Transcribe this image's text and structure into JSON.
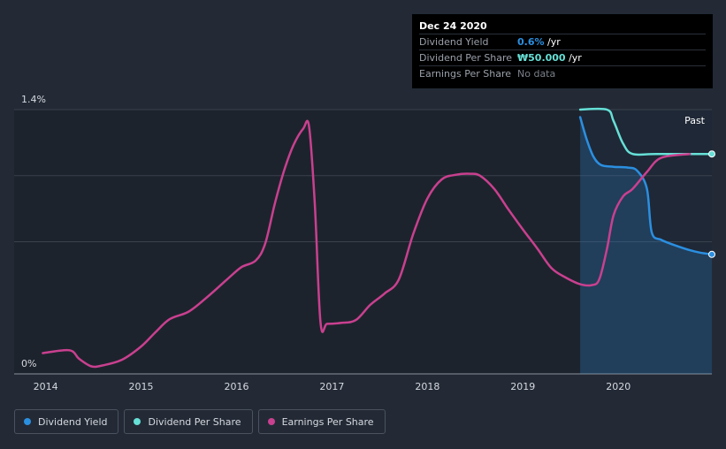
{
  "chart_data": {
    "type": "line",
    "x_ticks": [
      "2014",
      "2015",
      "2016",
      "2017",
      "2018",
      "2019",
      "2020"
    ],
    "y_ticks": [
      "1.4%",
      "0%"
    ],
    "past_label": "Past",
    "forecast_start": "2019.6",
    "series": [
      {
        "name": "Dividend Yield",
        "color": "#2b8fe0",
        "area": true,
        "points": [
          [
            2019.6,
            1.36
          ],
          [
            2019.67,
            1.24
          ],
          [
            2019.74,
            1.15
          ],
          [
            2019.82,
            1.106
          ],
          [
            2019.95,
            1.097
          ],
          [
            2020.1,
            1.093
          ],
          [
            2020.2,
            1.075
          ],
          [
            2020.3,
            0.98
          ],
          [
            2020.35,
            0.75
          ],
          [
            2020.45,
            0.71
          ],
          [
            2020.6,
            0.68
          ],
          [
            2020.75,
            0.655
          ],
          [
            2020.85,
            0.643
          ],
          [
            2020.98,
            0.633
          ]
        ]
      },
      {
        "name": "Dividend Per Share",
        "color": "#66e0d6",
        "points": [
          [
            2019.6,
            1.4
          ],
          [
            2019.88,
            1.4
          ],
          [
            2019.95,
            1.34
          ],
          [
            2020.05,
            1.22
          ],
          [
            2020.15,
            1.165
          ],
          [
            2020.4,
            1.165
          ],
          [
            2020.98,
            1.165
          ]
        ]
      },
      {
        "name": "Earnings Per Share",
        "color": "#c9408f",
        "points": [
          [
            2013.97,
            0.11
          ],
          [
            2014.25,
            0.125
          ],
          [
            2014.35,
            0.08
          ],
          [
            2014.48,
            0.04
          ],
          [
            2014.6,
            0.045
          ],
          [
            2014.8,
            0.075
          ],
          [
            2015,
            0.145
          ],
          [
            2015.15,
            0.22
          ],
          [
            2015.3,
            0.29
          ],
          [
            2015.5,
            0.33
          ],
          [
            2015.7,
            0.41
          ],
          [
            2015.9,
            0.5
          ],
          [
            2016.05,
            0.565
          ],
          [
            2016.2,
            0.6
          ],
          [
            2016.3,
            0.69
          ],
          [
            2016.4,
            0.9
          ],
          [
            2016.5,
            1.08
          ],
          [
            2016.6,
            1.215
          ],
          [
            2016.7,
            1.3
          ],
          [
            2016.76,
            1.31
          ],
          [
            2016.82,
            0.9
          ],
          [
            2016.88,
            0.27
          ],
          [
            2016.95,
            0.265
          ],
          [
            2017.1,
            0.27
          ],
          [
            2017.25,
            0.285
          ],
          [
            2017.4,
            0.365
          ],
          [
            2017.55,
            0.425
          ],
          [
            2017.7,
            0.5
          ],
          [
            2017.85,
            0.74
          ],
          [
            2018,
            0.93
          ],
          [
            2018.15,
            1.03
          ],
          [
            2018.3,
            1.055
          ],
          [
            2018.45,
            1.06
          ],
          [
            2018.55,
            1.05
          ],
          [
            2018.7,
            0.98
          ],
          [
            2018.85,
            0.87
          ],
          [
            2019,
            0.765
          ],
          [
            2019.15,
            0.665
          ],
          [
            2019.3,
            0.56
          ],
          [
            2019.45,
            0.51
          ],
          [
            2019.6,
            0.475
          ],
          [
            2019.72,
            0.47
          ],
          [
            2019.8,
            0.5
          ],
          [
            2019.88,
            0.66
          ],
          [
            2019.95,
            0.84
          ],
          [
            2020.05,
            0.94
          ],
          [
            2020.15,
            0.98
          ],
          [
            2020.3,
            1.07
          ],
          [
            2020.45,
            1.145
          ],
          [
            2020.75,
            1.165
          ]
        ]
      }
    ],
    "ylim": [
      0,
      1.4
    ],
    "xlim": [
      2013.67,
      2020.98
    ]
  },
  "tooltip": {
    "date": "Dec 24 2020",
    "rows": [
      {
        "label": "Dividend Yield",
        "value": "0.6%",
        "unit": " /yr",
        "color": "#2b8fe0"
      },
      {
        "label": "Dividend Per Share",
        "value": "₩50.000",
        "unit": " /yr",
        "color": "#66e0d6"
      },
      {
        "label": "Earnings Per Share",
        "value": "No data",
        "unit": "",
        "color": "#7a808a"
      }
    ]
  },
  "legend": [
    {
      "label": "Dividend Yield",
      "color": "#2b8fe0"
    },
    {
      "label": "Dividend Per Share",
      "color": "#66e0d6"
    },
    {
      "label": "Earnings Per Share",
      "color": "#c9408f"
    }
  ]
}
